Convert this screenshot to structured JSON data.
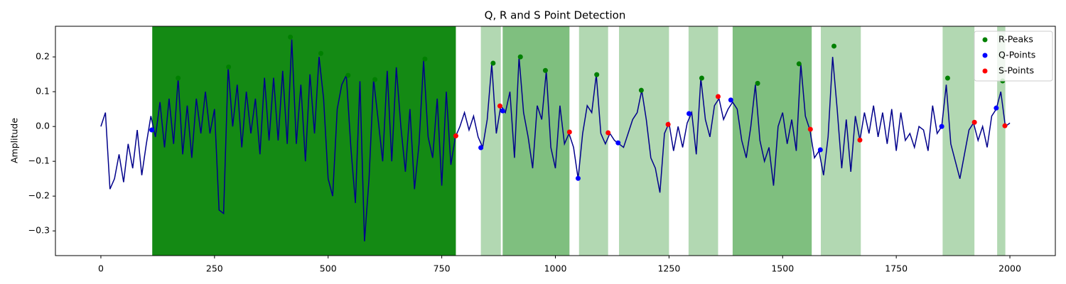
{
  "chart_data": {
    "type": "line",
    "title": "Q, R and S Point Detection",
    "y_label": "Amplitude",
    "xlim": [
      -100,
      2100
    ],
    "ylim": [
      -0.371,
      0.288
    ],
    "xticks": [
      0,
      250,
      500,
      750,
      1000,
      1250,
      1500,
      1750,
      2000
    ],
    "yticks": [
      {
        "value": -0.3,
        "label": "−0.3"
      },
      {
        "value": -0.2,
        "label": "−0.2"
      },
      {
        "value": -0.1,
        "label": "−0.1"
      },
      {
        "value": 0,
        "label": "0.0"
      },
      0.1,
      0.2
    ],
    "legend": "upper right",
    "shaded_regions": [
      {
        "x0": 113,
        "x1": 781,
        "color": "#148a14"
      },
      {
        "x0": 836,
        "x1": 880,
        "color": "#b2d8b2"
      },
      {
        "x0": 884,
        "x1": 1031,
        "color": "#7fbf7f"
      },
      {
        "x0": 1052,
        "x1": 1116,
        "color": "#b2d8b2"
      },
      {
        "x0": 1140,
        "x1": 1250,
        "color": "#b2d8b2"
      },
      {
        "x0": 1293,
        "x1": 1358,
        "color": "#b2d8b2"
      },
      {
        "x0": 1390,
        "x1": 1564,
        "color": "#7fbf7f"
      },
      {
        "x0": 1584,
        "x1": 1672,
        "color": "#b2d8b2"
      },
      {
        "x0": 1852,
        "x1": 1922,
        "color": "#b2d8b2"
      },
      {
        "x0": 1972,
        "x1": 1990,
        "color": "#b2d8b2"
      }
    ],
    "signal": {
      "color": "#00008b",
      "x": [
        0,
        10,
        20,
        30,
        40,
        50,
        60,
        70,
        80,
        90,
        100,
        110,
        120,
        130,
        140,
        150,
        160,
        170,
        180,
        190,
        200,
        210,
        220,
        230,
        240,
        250,
        260,
        270,
        280,
        290,
        300,
        310,
        320,
        330,
        340,
        350,
        360,
        370,
        380,
        390,
        400,
        410,
        420,
        430,
        440,
        450,
        460,
        470,
        480,
        490,
        500,
        510,
        520,
        530,
        540,
        550,
        560,
        570,
        580,
        590,
        600,
        610,
        620,
        630,
        640,
        650,
        660,
        670,
        680,
        690,
        700,
        710,
        720,
        730,
        740,
        750,
        760,
        770,
        780,
        790,
        800,
        810,
        820,
        830,
        840,
        850,
        860,
        870,
        880,
        890,
        900,
        910,
        920,
        930,
        940,
        950,
        960,
        970,
        980,
        990,
        1000,
        1010,
        1020,
        1030,
        1040,
        1050,
        1060,
        1070,
        1080,
        1090,
        1100,
        1110,
        1120,
        1130,
        1140,
        1150,
        1160,
        1170,
        1180,
        1190,
        1200,
        1210,
        1220,
        1230,
        1240,
        1250,
        1260,
        1270,
        1280,
        1290,
        1300,
        1310,
        1320,
        1330,
        1340,
        1350,
        1360,
        1370,
        1380,
        1390,
        1400,
        1410,
        1420,
        1430,
        1440,
        1450,
        1460,
        1470,
        1480,
        1490,
        1500,
        1510,
        1520,
        1530,
        1540,
        1550,
        1560,
        1570,
        1580,
        1590,
        1600,
        1610,
        1620,
        1630,
        1640,
        1650,
        1660,
        1670,
        1680,
        1690,
        1700,
        1710,
        1720,
        1730,
        1740,
        1750,
        1760,
        1770,
        1780,
        1790,
        1800,
        1810,
        1820,
        1830,
        1840,
        1850,
        1860,
        1870,
        1880,
        1890,
        1900,
        1910,
        1920,
        1930,
        1940,
        1950,
        1960,
        1970,
        1980,
        1990,
        2000
      ],
      "values": [
        0.0,
        0.04,
        -0.18,
        -0.15,
        -0.08,
        -0.16,
        -0.05,
        -0.12,
        -0.01,
        -0.14,
        -0.05,
        0.03,
        -0.03,
        0.07,
        -0.06,
        0.08,
        -0.05,
        0.139,
        -0.08,
        0.06,
        -0.09,
        0.08,
        -0.02,
        0.1,
        -0.02,
        0.05,
        -0.24,
        -0.25,
        0.171,
        0.0,
        0.12,
        -0.06,
        0.1,
        -0.02,
        0.08,
        -0.08,
        0.14,
        -0.04,
        0.14,
        -0.04,
        0.16,
        -0.05,
        0.25,
        -0.05,
        0.12,
        -0.1,
        0.15,
        -0.02,
        0.2,
        0.08,
        -0.15,
        -0.2,
        0.05,
        0.12,
        0.147,
        -0.06,
        -0.22,
        0.13,
        -0.33,
        -0.15,
        0.135,
        0.02,
        -0.1,
        0.16,
        -0.1,
        0.17,
        0.0,
        -0.13,
        0.05,
        -0.18,
        -0.05,
        0.19,
        -0.03,
        -0.09,
        0.08,
        -0.17,
        0.1,
        -0.11,
        -0.03,
        0.0,
        0.04,
        -0.01,
        0.03,
        -0.03,
        -0.06,
        0.02,
        0.18,
        -0.02,
        0.06,
        0.04,
        0.1,
        -0.09,
        0.2,
        0.04,
        -0.03,
        -0.12,
        0.06,
        0.02,
        0.16,
        -0.06,
        -0.12,
        0.06,
        -0.05,
        -0.02,
        -0.06,
        -0.15,
        -0.02,
        0.06,
        0.04,
        0.149,
        -0.02,
        -0.05,
        -0.02,
        -0.04,
        -0.05,
        -0.06,
        -0.02,
        0.02,
        0.04,
        0.104,
        0.02,
        -0.09,
        -0.12,
        -0.19,
        -0.02,
        0.01,
        -0.07,
        0.0,
        -0.06,
        0.01,
        0.04,
        -0.08,
        0.139,
        0.02,
        -0.03,
        0.06,
        0.08,
        0.02,
        0.05,
        0.07,
        0.05,
        -0.04,
        -0.09,
        0.0,
        0.12,
        -0.04,
        -0.1,
        -0.06,
        -0.17,
        0.0,
        0.04,
        -0.05,
        0.02,
        -0.07,
        0.18,
        0.03,
        -0.01,
        -0.09,
        -0.07,
        -0.14,
        -0.03,
        0.2,
        0.05,
        -0.12,
        0.02,
        -0.13,
        0.03,
        -0.04,
        0.04,
        -0.02,
        0.06,
        -0.03,
        0.04,
        -0.05,
        0.05,
        -0.07,
        0.04,
        -0.04,
        -0.02,
        -0.06,
        0.0,
        -0.01,
        -0.07,
        0.06,
        -0.02,
        0.0,
        0.12,
        -0.05,
        -0.1,
        -0.15,
        -0.08,
        -0.01,
        0.01,
        -0.04,
        0.0,
        -0.06,
        0.03,
        0.05,
        0.1,
        0.0,
        0.01
      ]
    },
    "series": [
      {
        "name": "R-Peaks",
        "color": "#008000",
        "x": [
          170,
          281,
          417,
          484,
          544,
          603,
          713,
          863,
          923,
          978,
          1091,
          1189,
          1322,
          1445,
          1536,
          1613,
          1863,
          1984
        ],
        "values": [
          0.139,
          0.171,
          0.257,
          0.21,
          0.147,
          0.135,
          0.194,
          0.182,
          0.2,
          0.161,
          0.149,
          0.104,
          0.139,
          0.124,
          0.18,
          0.231,
          0.139,
          0.131
        ]
      },
      {
        "name": "Q-Points",
        "color": "#0000ff",
        "x": [
          112,
          836,
          884,
          1050,
          1138,
          1294,
          1386,
          1583,
          1850,
          1970
        ],
        "values": [
          -0.01,
          -0.061,
          0.045,
          -0.149,
          -0.047,
          0.037,
          0.076,
          -0.067,
          0.0,
          0.053
        ]
      },
      {
        "name": "S-Points",
        "color": "#ff0000",
        "x": [
          781,
          878,
          1031,
          1116,
          1248,
          1358,
          1561,
          1670,
          1922,
          1989
        ],
        "values": [
          -0.027,
          0.059,
          -0.016,
          -0.018,
          0.006,
          0.086,
          -0.008,
          -0.039,
          0.012,
          0.002
        ]
      }
    ]
  }
}
